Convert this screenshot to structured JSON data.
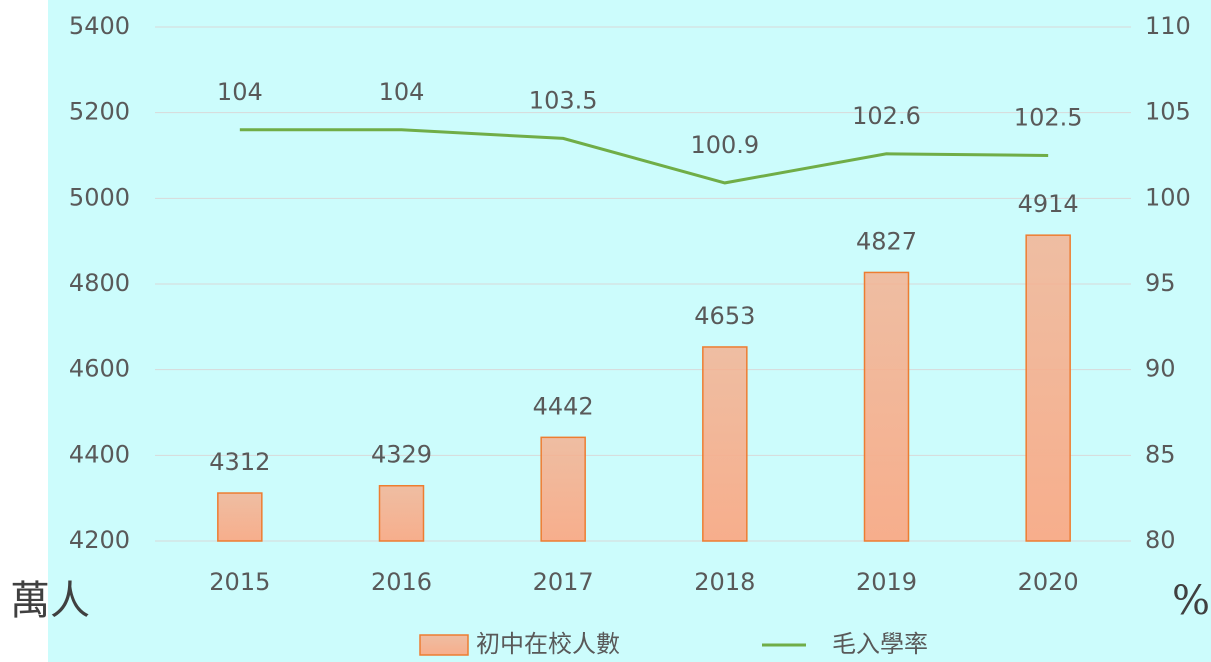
{
  "chart_data": {
    "type": "bar_line",
    "categories": [
      "2015",
      "2016",
      "2017",
      "2018",
      "2019",
      "2020"
    ],
    "series": [
      {
        "name": "初中在校人數",
        "type": "bar",
        "color": "#f7ae8c",
        "edge_color": "#ed7d31",
        "axis": "y",
        "values": [
          4312,
          4329,
          4442,
          4653,
          4827,
          4914
        ]
      },
      {
        "name": "毛入學率",
        "type": "line",
        "color": "#70ad47",
        "axis": "y2",
        "values": [
          104,
          104,
          103.5,
          100.9,
          102.6,
          102.5
        ]
      }
    ],
    "y_label": "萬人",
    "y2_label": "%",
    "ylim": [
      4200,
      5400
    ],
    "yticks": [
      4200,
      4400,
      4600,
      4800,
      5000,
      5200,
      5400
    ],
    "y2lim": [
      80,
      110
    ],
    "y2ticks": [
      80,
      85,
      90,
      95,
      100,
      105,
      110
    ],
    "grid": true,
    "background": "#ccfcfc",
    "legend": "bottom"
  }
}
